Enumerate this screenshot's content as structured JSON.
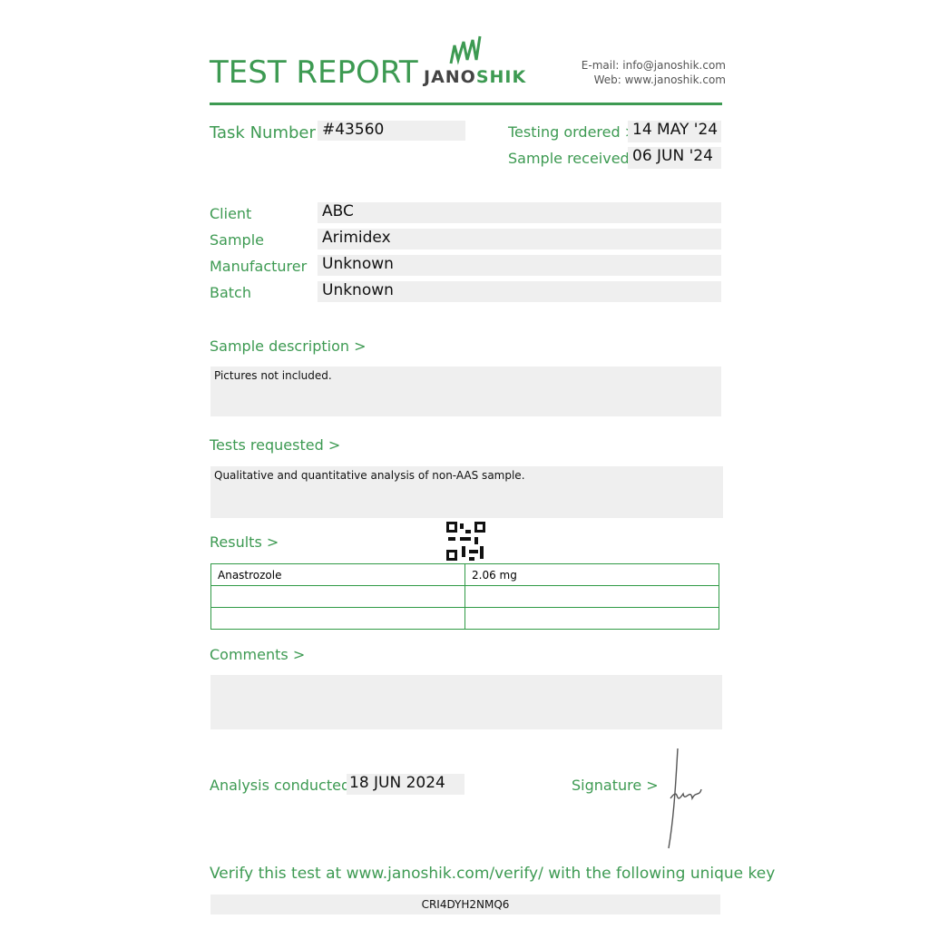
{
  "header": {
    "title": "TEST REPORT",
    "logo_text_dark": "JANO",
    "logo_text_green": "SHIK",
    "email": "E-mail: info@janoshik.com",
    "web": "Web: www.janoshik.com"
  },
  "task": {
    "label": "Task Number",
    "value": "#43560"
  },
  "dates": {
    "ordered_label": "Testing ordered  >",
    "ordered": "14 MAY '24",
    "received_label": "Sample received >",
    "received": "06 JUN '24"
  },
  "fields": [
    {
      "label": "Client",
      "value": "ABC"
    },
    {
      "label": "Sample",
      "value": "Arimidex"
    },
    {
      "label": "Manufacturer",
      "value": "Unknown"
    },
    {
      "label": "Batch",
      "value": "Unknown"
    }
  ],
  "description": {
    "label": "Sample description >",
    "text": "Pictures not included."
  },
  "tests": {
    "label": "Tests requested >",
    "text": "Qualitative and quantitative analysis of non-AAS sample."
  },
  "results": {
    "label": "Results >",
    "rows": [
      [
        "Anastrozole",
        "2.06 mg"
      ],
      [
        "",
        ""
      ],
      [
        "",
        ""
      ]
    ]
  },
  "comments": {
    "label": "Comments >",
    "text": ""
  },
  "analysis": {
    "label": "Analysis conducted >",
    "date": "18 JUN 2024"
  },
  "signature": {
    "label": "Signature >"
  },
  "verify": {
    "text": "Verify this test at www.janoshik.com/verify/ with the following unique key",
    "key": "CRI4DYH2NMQ6"
  },
  "colors": {
    "accent": "#3d9a52"
  }
}
